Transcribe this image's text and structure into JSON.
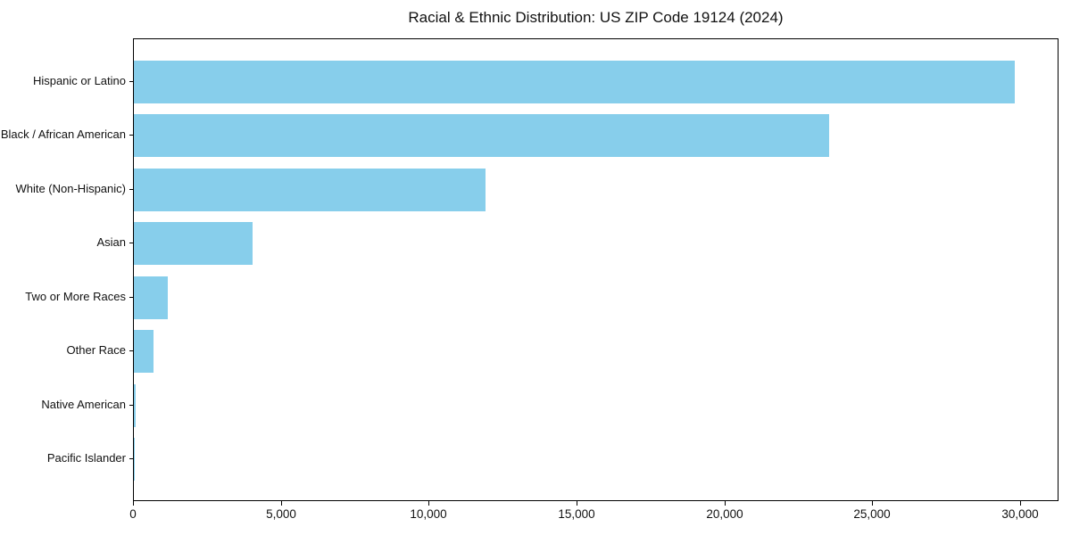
{
  "chart_data": {
    "type": "bar",
    "orientation": "horizontal",
    "title": "Racial & Ethnic Distribution: US ZIP Code 19124 (2024)",
    "categories": [
      "Hispanic or Latino",
      "Black / African American",
      "White (Non-Hispanic)",
      "Asian",
      "Two or More Races",
      "Other Race",
      "Native American",
      "Pacific Islander"
    ],
    "values": [
      29800,
      23500,
      11900,
      4000,
      1150,
      660,
      70,
      20
    ],
    "xlabel": "",
    "ylabel": "",
    "xlim": [
      0,
      31300
    ],
    "x_ticks": [
      0,
      5000,
      10000,
      15000,
      20000,
      25000,
      30000
    ],
    "x_tick_labels": [
      "0",
      "5,000",
      "10,000",
      "15,000",
      "20,000",
      "25,000",
      "30,000"
    ],
    "bar_color": "#87CEEB",
    "text_color": "#111111",
    "spine_color": "#000000",
    "background_color": "#ffffff",
    "grid": false,
    "legend": null
  }
}
